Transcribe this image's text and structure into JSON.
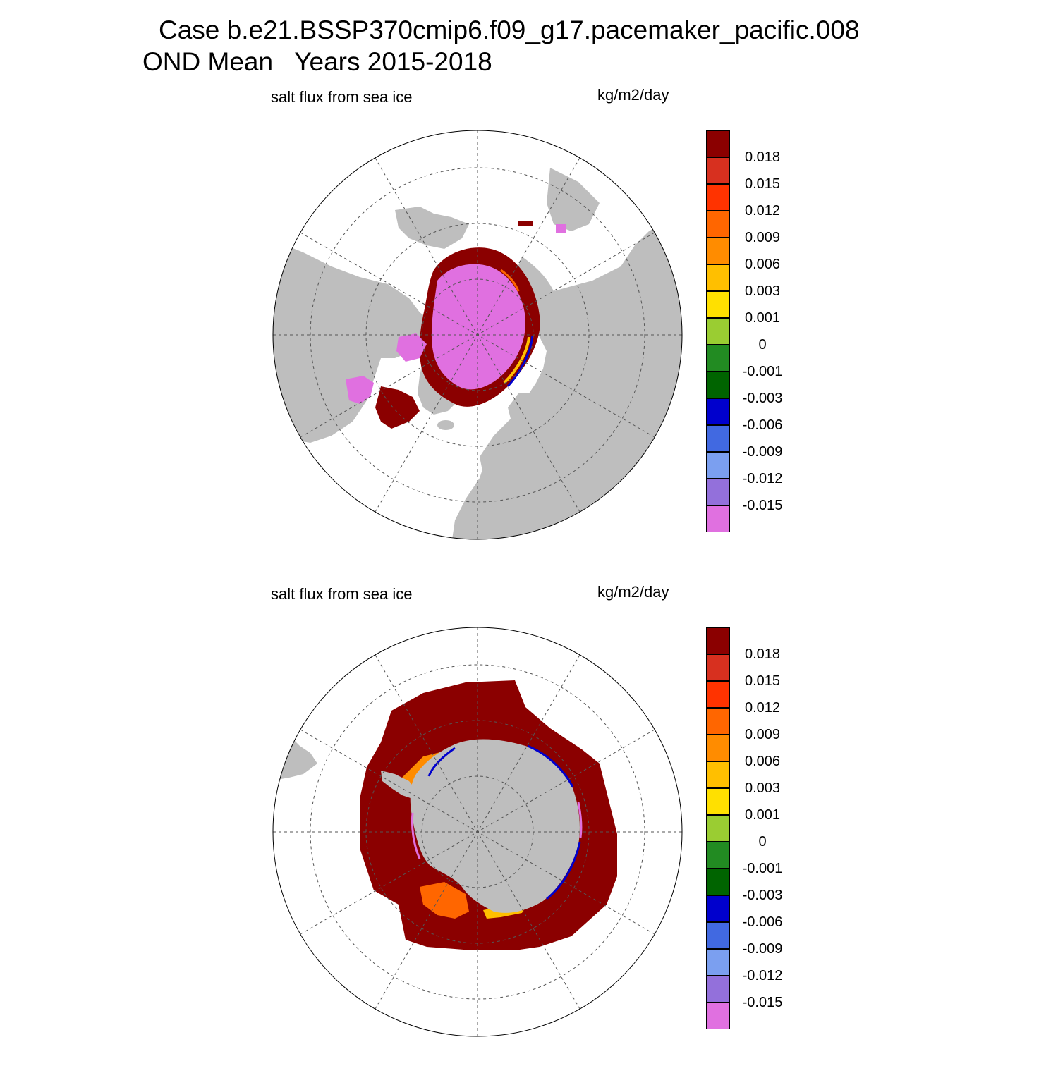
{
  "figure": {
    "case_title": "Case b.e21.BSSP370cmip6.f09_g17.pacemaker_pacific.008",
    "period_title": "OND Mean   Years 2015-2018"
  },
  "panels": [
    {
      "id": "arctic",
      "variable_label": "salt flux from sea ice",
      "units_label": "kg/m2/day",
      "hemisphere": "north"
    },
    {
      "id": "antarctic",
      "variable_label": "salt flux from sea ice",
      "units_label": "kg/m2/day",
      "hemisphere": "south"
    }
  ],
  "colorbar": {
    "labels": [
      "0.018",
      "0.015",
      "0.012",
      "0.009",
      "0.006",
      "0.003",
      "0.001",
      "0",
      "-0.001",
      "-0.003",
      "-0.006",
      "-0.009",
      "-0.012",
      "-0.015"
    ],
    "colors": [
      "#8b0000",
      "#d7301f",
      "#ff3300",
      "#ff6600",
      "#ff8c00",
      "#ffbf00",
      "#ffe000",
      "#9acd32",
      "#228b22",
      "#006400",
      "#0000cd",
      "#4169e1",
      "#7b9ff0",
      "#9370db",
      "#e070e0"
    ]
  },
  "map_colors": {
    "land": "#bebebe",
    "ocean": "#ffffff",
    "grid": "#555555"
  }
}
